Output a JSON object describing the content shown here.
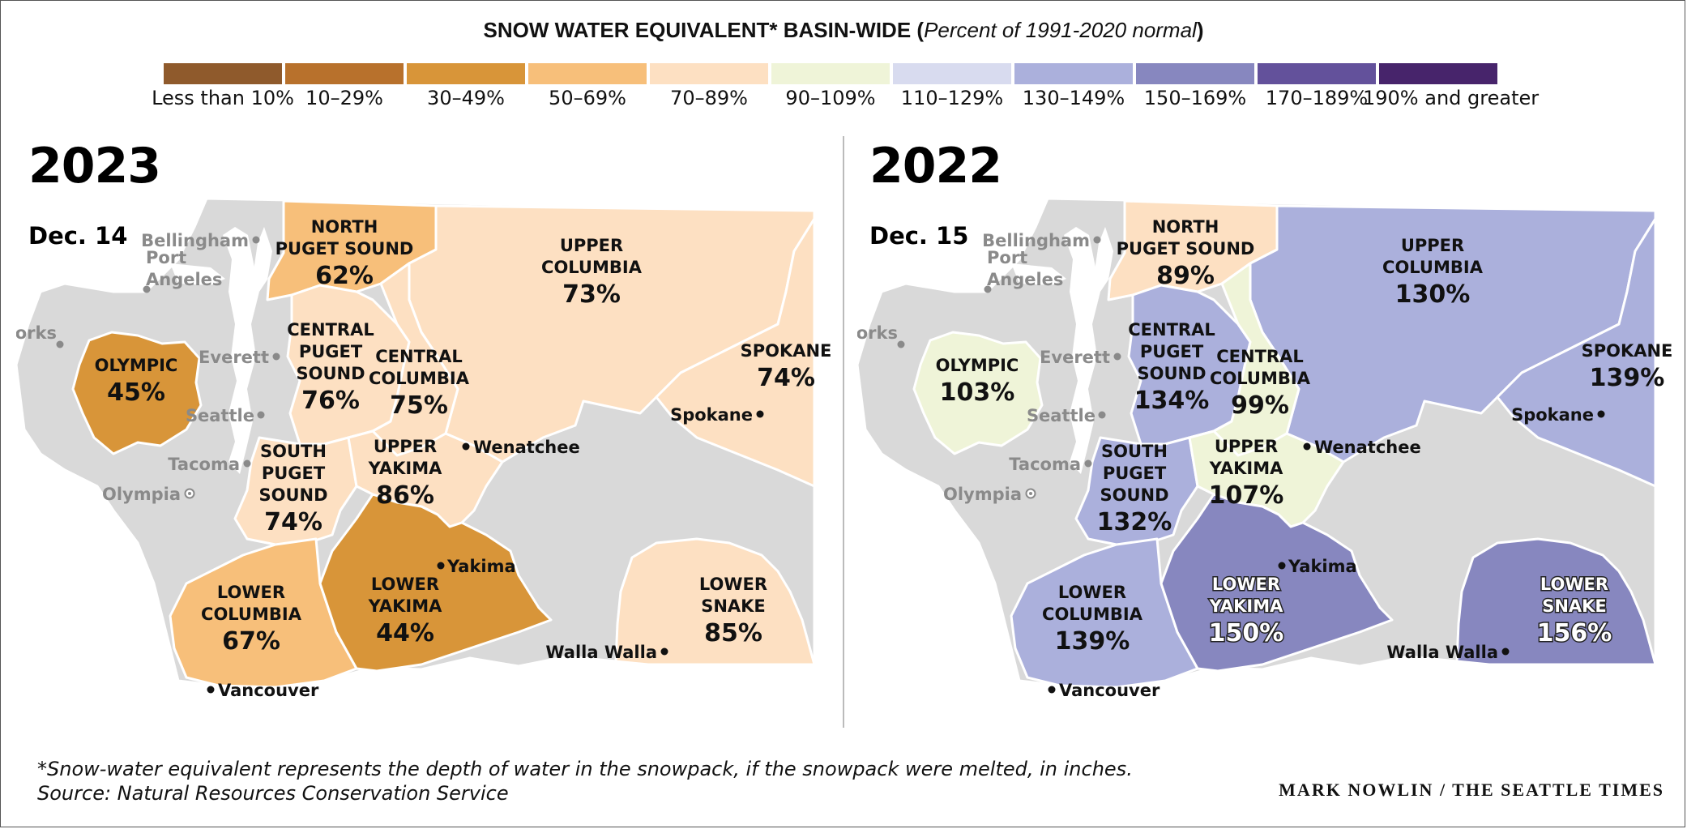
{
  "title": {
    "main": "SNOW WATER EQUIVALENT* BASIN-WIDE (",
    "sub": "Percent of 1991-2020 normal",
    "close": ")"
  },
  "legend": [
    {
      "label": "Less than 10%",
      "color": "#8f5a2c"
    },
    {
      "label": "10–29%",
      "color": "#b8712c"
    },
    {
      "label": "30–49%",
      "color": "#d89539"
    },
    {
      "label": "50–69%",
      "color": "#f7bf7a"
    },
    {
      "label": "70–89%",
      "color": "#fde0c2"
    },
    {
      "label": "90–109%",
      "color": "#eff4d8"
    },
    {
      "label": "110–129%",
      "color": "#d8dbef"
    },
    {
      "label": "130–149%",
      "color": "#abb0dc"
    },
    {
      "label": "150–169%",
      "color": "#8787bf"
    },
    {
      "label": "170–189%",
      "color": "#63519b"
    },
    {
      "label": "190% and greater",
      "color": "#47246b"
    }
  ],
  "base_color": "#d9d9d9",
  "panels": [
    {
      "year": "2023",
      "date": "Dec. 14",
      "regions": {
        "north_puget": {
          "name": [
            "NORTH",
            "PUGET SOUND"
          ],
          "pct": "62%",
          "color": "#f7bf7a"
        },
        "upper_columbia": {
          "name": [
            "UPPER",
            "COLUMBIA"
          ],
          "pct": "73%",
          "color": "#fde0c2"
        },
        "spokane": {
          "name": [
            "SPOKANE"
          ],
          "pct": "74%",
          "color": "#fde0c2"
        },
        "olympic": {
          "name": [
            "OLYMPIC"
          ],
          "pct": "45%",
          "color": "#d89539"
        },
        "central_puget": {
          "name": [
            "CENTRAL",
            "PUGET",
            "SOUND"
          ],
          "pct": "76%",
          "color": "#fde0c2"
        },
        "central_columbia": {
          "name": [
            "CENTRAL",
            "COLUMBIA"
          ],
          "pct": "75%",
          "color": "#fde0c2"
        },
        "south_puget": {
          "name": [
            "SOUTH",
            "PUGET",
            "SOUND"
          ],
          "pct": "74%",
          "color": "#fde0c2"
        },
        "upper_yakima": {
          "name": [
            "UPPER",
            "YAKIMA"
          ],
          "pct": "86%",
          "color": "#fde0c2"
        },
        "lower_columbia": {
          "name": [
            "LOWER",
            "COLUMBIA"
          ],
          "pct": "67%",
          "color": "#f7bf7a"
        },
        "lower_yakima": {
          "name": [
            "LOWER",
            "YAKIMA"
          ],
          "pct": "44%",
          "color": "#d89539"
        },
        "lower_snake": {
          "name": [
            "LOWER",
            "SNAKE"
          ],
          "pct": "85%",
          "color": "#fde0c2"
        }
      }
    },
    {
      "year": "2022",
      "date": "Dec. 15",
      "regions": {
        "north_puget": {
          "name": [
            "NORTH",
            "PUGET SOUND"
          ],
          "pct": "89%",
          "color": "#fde0c2"
        },
        "upper_columbia": {
          "name": [
            "UPPER",
            "COLUMBIA"
          ],
          "pct": "130%",
          "color": "#abb0dc"
        },
        "spokane": {
          "name": [
            "SPOKANE"
          ],
          "pct": "139%",
          "color": "#abb0dc"
        },
        "olympic": {
          "name": [
            "OLYMPIC"
          ],
          "pct": "103%",
          "color": "#eff4d8"
        },
        "central_puget": {
          "name": [
            "CENTRAL",
            "PUGET",
            "SOUND"
          ],
          "pct": "134%",
          "color": "#abb0dc"
        },
        "central_columbia": {
          "name": [
            "CENTRAL",
            "COLUMBIA"
          ],
          "pct": "99%",
          "color": "#eff4d8"
        },
        "south_puget": {
          "name": [
            "SOUTH",
            "PUGET",
            "SOUND"
          ],
          "pct": "132%",
          "color": "#abb0dc"
        },
        "upper_yakima": {
          "name": [
            "UPPER",
            "YAKIMA"
          ],
          "pct": "107%",
          "color": "#eff4d8"
        },
        "lower_columbia": {
          "name": [
            "LOWER",
            "COLUMBIA"
          ],
          "pct": "139%",
          "color": "#abb0dc"
        },
        "lower_yakima": {
          "name": [
            "LOWER",
            "YAKIMA"
          ],
          "pct": "150%",
          "color": "#8787bf"
        },
        "lower_snake": {
          "name": [
            "LOWER",
            "SNAKE"
          ],
          "pct": "156%",
          "color": "#8787bf"
        }
      }
    }
  ],
  "cities": {
    "bellingham": "Bellingham",
    "port": "Port",
    "angeles": "Angeles",
    "forks": "Forks",
    "everett": "Everett",
    "seattle": "Seattle",
    "tacoma": "Tacoma",
    "olympia": "Olympia",
    "wenatchee": "Wenatchee",
    "spokane": "Spokane",
    "yakima": "Yakima",
    "vancouver": "Vancouver",
    "walla_walla": "Walla Walla"
  },
  "footnote": {
    "line1": "*Snow-water equivalent represents the depth of water in the snowpack, if the snowpack were melted, in inches.",
    "line2": "Source: Natural Resources Conservation Service"
  },
  "credit": "MARK NOWLIN / THE SEATTLE TIMES"
}
